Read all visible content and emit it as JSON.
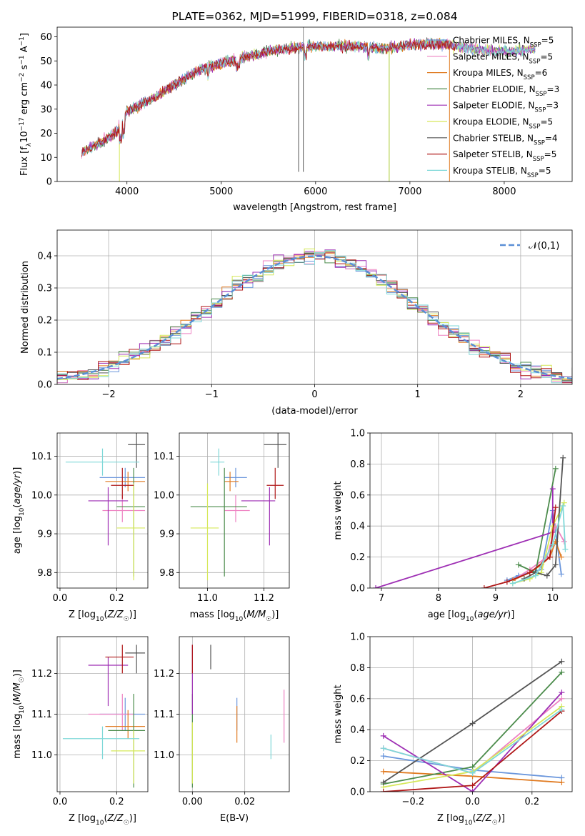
{
  "colors": {
    "Chabrier MILES": "#6a96dc",
    "Salpeter MILES": "#ee82c2",
    "Kroupa MILES": "#e07a20",
    "Chabrier ELODIE": "#4c8c4c",
    "Salpeter ELODIE": "#9e2fb4",
    "Kroupa ELODIE": "#d6e85a",
    "Chabrier STELIB": "#555555",
    "Salpeter STELIB": "#b01818",
    "Kroupa STELIB": "#7fd8d8"
  },
  "chart_data": [
    {
      "type": "line",
      "title": "PLATE=0362, MJD=51999, FIBERID=0318, z=0.084",
      "xlabel": "wavelength [Angstrom, rest frame]",
      "ylabel": "Flux [f_λ 10⁻¹⁷ erg cm⁻² s⁻¹ A⁻¹]",
      "xlim": [
        3260,
        8720
      ],
      "ylim": [
        0,
        64
      ],
      "xticks": [
        "4000",
        "5000",
        "6000",
        "7000",
        "8000"
      ],
      "yticks": [
        "0",
        "10",
        "20",
        "30",
        "40",
        "50",
        "60"
      ],
      "legend_position": "top-right",
      "legend": [
        {
          "name": "Chabrier MILES",
          "nssp": "5"
        },
        {
          "name": "Salpeter MILES",
          "nssp": "5"
        },
        {
          "name": "Kroupa MILES",
          "nssp": "6"
        },
        {
          "name": "Chabrier ELODIE",
          "nssp": "3"
        },
        {
          "name": "Salpeter ELODIE",
          "nssp": "3"
        },
        {
          "name": "Kroupa ELODIE",
          "nssp": "5"
        },
        {
          "name": "Chabrier STELIB",
          "nssp": "4"
        },
        {
          "name": "Salpeter STELIB",
          "nssp": "5"
        },
        {
          "name": "Kroupa STELIB",
          "nssp": "5"
        }
      ],
      "continuum": {
        "x": [
          3520,
          3650,
          3800,
          3900,
          4000,
          4100,
          4300,
          4500,
          4700,
          4900,
          5100,
          5300,
          5500,
          5700,
          5900,
          6100,
          6300,
          6500,
          6700,
          6900,
          7100,
          7300,
          7500,
          7700,
          7900,
          8100,
          8300
        ],
        "y": [
          12,
          15,
          18,
          21,
          29,
          31,
          35,
          40,
          45,
          48,
          50,
          52,
          54,
          55,
          56,
          56,
          56,
          56,
          55,
          56,
          57,
          57,
          56,
          55,
          54,
          54,
          55
        ]
      }
    },
    {
      "type": "bar",
      "xlabel": "(data-model)/error",
      "ylabel": "Normed distribution",
      "xlim": [
        -2.5,
        2.5
      ],
      "ylim": [
        0,
        0.48
      ],
      "xticks": [
        "−2",
        "−1",
        "0",
        "1",
        "2"
      ],
      "yticks": [
        "0.0",
        "0.1",
        "0.2",
        "0.3",
        "0.4"
      ],
      "legend_position": "top-right",
      "legend": [
        "𝒩(0,1)"
      ],
      "bin_width": 0.1,
      "reference_curve": "normal(0,1) pdf"
    },
    {
      "type": "scatter",
      "xlabel": "Z [log10(Z/Z☉)]",
      "ylabel": "age [log10(age/yr)]",
      "xlim": [
        -0.01,
        0.31
      ],
      "ylim": [
        9.76,
        10.16
      ],
      "xticks": [
        "0.0",
        "0.2"
      ],
      "yticks": [
        "9.8",
        "9.9",
        "10.0",
        "10.1"
      ],
      "points": [
        {
          "series": "Chabrier MILES",
          "x": 0.23,
          "y": 10.045,
          "xerr": [
            0.14,
            0.3
          ],
          "yerr": [
            10.02,
            10.07
          ]
        },
        {
          "series": "Salpeter MILES",
          "x": 0.22,
          "y": 9.96,
          "xerr": [
            0.15,
            0.3
          ],
          "yerr": [
            9.93,
            10.0
          ]
        },
        {
          "series": "Kroupa MILES",
          "x": 0.24,
          "y": 10.035,
          "xerr": [
            0.16,
            0.3
          ],
          "yerr": [
            10.01,
            10.06
          ]
        },
        {
          "series": "Chabrier ELODIE",
          "x": 0.26,
          "y": 9.97,
          "xerr": [
            0.2,
            0.3
          ],
          "yerr": [
            9.79,
            10.07
          ]
        },
        {
          "series": "Salpeter ELODIE",
          "x": 0.17,
          "y": 9.985,
          "xerr": [
            0.1,
            0.24
          ],
          "yerr": [
            9.87,
            10.02
          ]
        },
        {
          "series": "Kroupa ELODIE",
          "x": 0.26,
          "y": 9.915,
          "xerr": [
            0.2,
            0.3
          ],
          "yerr": [
            9.78,
            10.03
          ]
        },
        {
          "series": "Chabrier STELIB",
          "x": 0.27,
          "y": 10.13,
          "xerr": [
            0.24,
            0.3
          ],
          "yerr": [
            10.07,
            10.16
          ]
        },
        {
          "series": "Salpeter STELIB",
          "x": 0.22,
          "y": 10.025,
          "xerr": [
            0.18,
            0.26
          ],
          "yerr": [
            9.99,
            10.07
          ]
        },
        {
          "series": "Kroupa STELIB",
          "x": 0.15,
          "y": 10.085,
          "xerr": [
            0.02,
            0.28
          ],
          "yerr": [
            10.05,
            10.12
          ]
        }
      ]
    },
    {
      "type": "scatter",
      "xlabel": "mass [log10(M/M☉)]",
      "ylabel": "",
      "xlim": [
        10.9,
        11.29
      ],
      "ylim": [
        9.76,
        10.16
      ],
      "xticks": [
        "11.0",
        "11.2"
      ],
      "yticks": [
        "9.8",
        "9.9",
        "10.0",
        "10.1"
      ],
      "points": [
        {
          "series": "Chabrier MILES",
          "x": 11.1,
          "y": 10.045,
          "xerr": [
            11.06,
            11.14
          ],
          "yerr": [
            10.02,
            10.07
          ]
        },
        {
          "series": "Salpeter MILES",
          "x": 11.1,
          "y": 9.96,
          "xerr": [
            11.06,
            11.15
          ],
          "yerr": [
            9.93,
            10.0
          ]
        },
        {
          "series": "Kroupa MILES",
          "x": 11.08,
          "y": 10.035,
          "xerr": [
            11.06,
            11.11
          ],
          "yerr": [
            10.01,
            10.06
          ]
        },
        {
          "series": "Chabrier ELODIE",
          "x": 11.06,
          "y": 9.97,
          "xerr": [
            10.94,
            11.14
          ],
          "yerr": [
            9.79,
            10.07
          ]
        },
        {
          "series": "Salpeter ELODIE",
          "x": 11.22,
          "y": 9.985,
          "xerr": [
            11.12,
            11.24
          ],
          "yerr": [
            9.87,
            10.02
          ]
        },
        {
          "series": "Kroupa ELODIE",
          "x": 11.0,
          "y": 9.915,
          "xerr": [
            10.94,
            11.04
          ],
          "yerr": [
            9.78,
            10.03
          ]
        },
        {
          "series": "Chabrier STELIB",
          "x": 11.25,
          "y": 10.13,
          "xerr": [
            11.2,
            11.28
          ],
          "yerr": [
            10.07,
            10.16
          ]
        },
        {
          "series": "Salpeter STELIB",
          "x": 11.24,
          "y": 10.025,
          "xerr": [
            11.21,
            11.27
          ],
          "yerr": [
            9.99,
            10.07
          ]
        },
        {
          "series": "Kroupa STELIB",
          "x": 11.04,
          "y": 10.085,
          "xerr": [
            11.01,
            11.06
          ],
          "yerr": [
            10.05,
            10.12
          ]
        }
      ]
    },
    {
      "type": "line",
      "xlabel": "age [log10(age/yr)]",
      "ylabel": "mass weight",
      "xlim": [
        6.8,
        10.34
      ],
      "ylim": [
        0,
        1
      ],
      "xticks": [
        "7",
        "8",
        "9",
        "10"
      ],
      "yticks": [
        "0.0",
        "0.2",
        "0.4",
        "0.6",
        "0.8",
        "1.0"
      ],
      "series": [
        {
          "name": "Chabrier MILES",
          "x": [
            9.2,
            9.4,
            9.6,
            9.8,
            10.0,
            10.15
          ],
          "y": [
            0.05,
            0.08,
            0.1,
            0.12,
            0.5,
            0.09
          ]
        },
        {
          "name": "Salpeter MILES",
          "x": [
            9.3,
            9.6,
            9.9,
            10.05,
            10.2
          ],
          "y": [
            0.05,
            0.12,
            0.2,
            0.4,
            0.3
          ]
        },
        {
          "name": "Kroupa MILES",
          "x": [
            9.3,
            9.6,
            9.8,
            9.95,
            10.05,
            10.15
          ],
          "y": [
            0.05,
            0.1,
            0.15,
            0.2,
            0.3,
            0.2
          ]
        },
        {
          "name": "Chabrier ELODIE",
          "x": [
            9.4,
            9.7,
            10.05
          ],
          "y": [
            0.15,
            0.1,
            0.77
          ]
        },
        {
          "name": "Salpeter ELODIE",
          "x": [
            6.9,
            10.0,
            10.0
          ],
          "y": [
            0.0,
            0.36,
            0.64
          ]
        },
        {
          "name": "Kroupa ELODIE",
          "x": [
            9.3,
            9.6,
            9.8,
            10.0,
            10.2
          ],
          "y": [
            0.03,
            0.06,
            0.1,
            0.4,
            0.55
          ]
        },
        {
          "name": "Chabrier STELIB",
          "x": [
            9.5,
            9.7,
            9.9,
            10.05,
            10.18
          ],
          "y": [
            0.06,
            0.1,
            0.08,
            0.15,
            0.84
          ]
        },
        {
          "name": "Salpeter STELIB",
          "x": [
            8.8,
            9.2,
            9.6,
            9.95,
            10.05
          ],
          "y": [
            0.0,
            0.04,
            0.1,
            0.2,
            0.52
          ]
        },
        {
          "name": "Kroupa STELIB",
          "x": [
            9.3,
            9.7,
            10.0,
            10.18,
            10.22
          ],
          "y": [
            0.03,
            0.08,
            0.28,
            0.53,
            0.25
          ]
        }
      ]
    },
    {
      "type": "scatter",
      "xlabel": "Z [log10(Z/Z☉)]",
      "ylabel": "mass [log10(M/M☉)]",
      "xlim": [
        -0.01,
        0.31
      ],
      "ylim": [
        10.91,
        11.29
      ],
      "xticks": [
        "0.0",
        "0.2"
      ],
      "yticks": [
        "11.0",
        "11.1",
        "11.2"
      ],
      "points": [
        {
          "series": "Chabrier MILES",
          "x": 0.23,
          "y": 11.1,
          "xerr": [
            0.14,
            0.3
          ],
          "yerr": [
            11.06,
            11.14
          ]
        },
        {
          "series": "Salpeter MILES",
          "x": 0.22,
          "y": 11.1,
          "xerr": [
            0.1,
            0.26
          ],
          "yerr": [
            11.06,
            11.15
          ]
        },
        {
          "series": "Kroupa MILES",
          "x": 0.24,
          "y": 11.07,
          "xerr": [
            0.16,
            0.3
          ],
          "yerr": [
            11.04,
            11.11
          ]
        },
        {
          "series": "Chabrier ELODIE",
          "x": 0.26,
          "y": 11.06,
          "xerr": [
            0.17,
            0.3
          ],
          "yerr": [
            10.92,
            11.15
          ]
        },
        {
          "series": "Salpeter ELODIE",
          "x": 0.17,
          "y": 11.22,
          "xerr": [
            0.1,
            0.24
          ],
          "yerr": [
            11.12,
            11.24
          ]
        },
        {
          "series": "Kroupa ELODIE",
          "x": 0.26,
          "y": 11.01,
          "xerr": [
            0.18,
            0.3
          ],
          "yerr": [
            10.93,
            11.06
          ]
        },
        {
          "series": "Chabrier STELIB",
          "x": 0.27,
          "y": 11.25,
          "xerr": [
            0.23,
            0.3
          ],
          "yerr": [
            11.2,
            11.27
          ]
        },
        {
          "series": "Salpeter STELIB",
          "x": 0.22,
          "y": 11.24,
          "xerr": [
            0.16,
            0.26
          ],
          "yerr": [
            11.2,
            11.27
          ]
        },
        {
          "series": "Kroupa STELIB",
          "x": 0.15,
          "y": 11.04,
          "xerr": [
            0.01,
            0.28
          ],
          "yerr": [
            10.99,
            11.07
          ]
        }
      ]
    },
    {
      "type": "scatter",
      "xlabel": "E(B-V)",
      "ylabel": "",
      "xlim": [
        -0.005,
        0.037
      ],
      "ylim": [
        10.91,
        11.29
      ],
      "xticks": [
        "0.00",
        "0.02"
      ],
      "yticks": [
        "11.0",
        "11.1",
        "11.2"
      ],
      "points": [
        {
          "series": "Chabrier MILES",
          "x": 0.017,
          "y": 11.1,
          "yerr": [
            11.06,
            11.14
          ]
        },
        {
          "series": "Salpeter MILES",
          "x": 0.035,
          "y": 11.1,
          "yerr": [
            11.03,
            11.16
          ]
        },
        {
          "series": "Kroupa MILES",
          "x": 0.017,
          "y": 11.07,
          "yerr": [
            11.03,
            11.12
          ]
        },
        {
          "series": "Chabrier ELODIE",
          "x": 0.0,
          "y": 11.06,
          "yerr": [
            10.92,
            11.15
          ]
        },
        {
          "series": "Salpeter ELODIE",
          "x": 0.0,
          "y": 11.2,
          "yerr": [
            11.1,
            11.27
          ]
        },
        {
          "series": "Kroupa ELODIE",
          "x": 0.0,
          "y": 11.01,
          "yerr": [
            10.93,
            11.08
          ]
        },
        {
          "series": "Chabrier STELIB",
          "x": 0.007,
          "y": 11.25,
          "yerr": [
            11.21,
            11.27
          ]
        },
        {
          "series": "Salpeter STELIB",
          "x": 0.0,
          "y": 11.24,
          "yerr": [
            11.2,
            11.27
          ]
        },
        {
          "series": "Kroupa STELIB",
          "x": 0.03,
          "y": 11.02,
          "yerr": [
            10.99,
            11.05
          ]
        }
      ]
    },
    {
      "type": "line",
      "xlabel": "Z [log10(Z/Z☉)]",
      "ylabel": "mass weight",
      "xlim": [
        -0.345,
        0.335
      ],
      "ylim": [
        0,
        1
      ],
      "xticks": [
        "−0.2",
        "0.0",
        "0.2"
      ],
      "yticks": [
        "0.0",
        "0.2",
        "0.4",
        "0.6",
        "0.8",
        "1.0"
      ],
      "series": [
        {
          "name": "Chabrier MILES",
          "x": [
            -0.3,
            0.0,
            0.3
          ],
          "y": [
            0.23,
            0.14,
            0.09
          ]
        },
        {
          "name": "Salpeter MILES",
          "x": [
            -0.3,
            0.0,
            0.3
          ],
          "y": [
            0.28,
            0.12,
            0.6
          ]
        },
        {
          "name": "Kroupa MILES",
          "x": [
            -0.3,
            0.0,
            0.3
          ],
          "y": [
            0.13,
            0.1,
            0.06
          ]
        },
        {
          "name": "Chabrier ELODIE",
          "x": [
            -0.3,
            0.0,
            0.3
          ],
          "y": [
            0.05,
            0.16,
            0.77
          ]
        },
        {
          "name": "Salpeter ELODIE",
          "x": [
            -0.3,
            0.0,
            0.3
          ],
          "y": [
            0.36,
            0.0,
            0.64
          ]
        },
        {
          "name": "Kroupa ELODIE",
          "x": [
            -0.3,
            0.0,
            0.3
          ],
          "y": [
            0.03,
            0.13,
            0.55
          ]
        },
        {
          "name": "Chabrier STELIB",
          "x": [
            -0.3,
            0.0,
            0.3
          ],
          "y": [
            0.06,
            0.44,
            0.84
          ]
        },
        {
          "name": "Salpeter STELIB",
          "x": [
            -0.3,
            0.0,
            0.3
          ],
          "y": [
            0.0,
            0.04,
            0.52
          ]
        },
        {
          "name": "Kroupa STELIB",
          "x": [
            -0.3,
            0.0,
            0.3
          ],
          "y": [
            0.28,
            0.12,
            0.53
          ]
        }
      ]
    }
  ]
}
